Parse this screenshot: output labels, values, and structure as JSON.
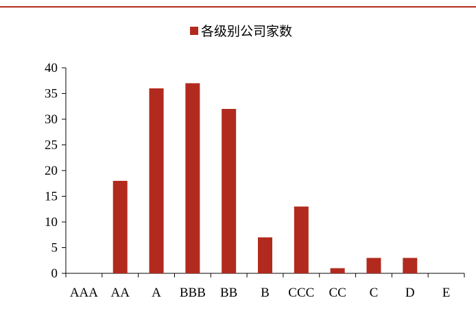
{
  "header": {
    "rule_color": "#b22a1e"
  },
  "chart_data": {
    "type": "bar",
    "title": "",
    "xlabel": "",
    "ylabel": "",
    "categories": [
      "AAA",
      "AA",
      "A",
      "BBB",
      "BB",
      "B",
      "CCC",
      "CC",
      "C",
      "D",
      "E"
    ],
    "series": [
      {
        "name": "各级别公司家数",
        "values": [
          0,
          18,
          36,
          37,
          32,
          7,
          13,
          1,
          3,
          3,
          0
        ],
        "color": "#b22a1e"
      }
    ],
    "ylim": [
      0,
      40
    ],
    "yticks": [
      0,
      5,
      10,
      15,
      20,
      25,
      30,
      35,
      40
    ],
    "grid": false,
    "legend_position": "top-center"
  }
}
